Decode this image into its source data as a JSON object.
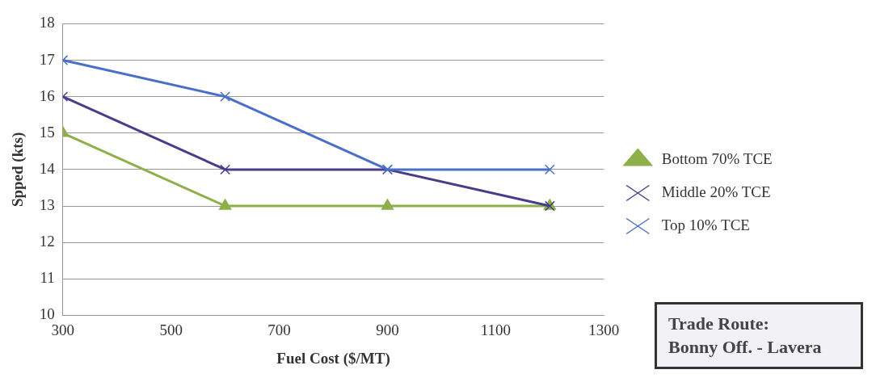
{
  "chart_data": {
    "type": "line",
    "xlabel": "Fuel Cost ($/MT)",
    "ylabel": "Spped (kts)",
    "x": [
      300,
      600,
      900,
      1200
    ],
    "series": [
      {
        "name": "Bottom 70% TCE",
        "color": "#8db04a",
        "marker": "triangle",
        "values": [
          15,
          13,
          13,
          13
        ]
      },
      {
        "name": "Middle 20% TCE",
        "color": "#4a3c8c",
        "marker": "cross",
        "values": [
          16,
          14,
          14,
          13
        ]
      },
      {
        "name": "Top 10% TCE",
        "color": "#4a6fc8",
        "marker": "cross",
        "values": [
          17,
          16,
          14,
          14
        ]
      }
    ],
    "xlim": [
      300,
      1300
    ],
    "xticks": [
      300,
      500,
      700,
      900,
      1100,
      1300
    ],
    "ylim": [
      10,
      18
    ],
    "yticks": [
      10,
      11,
      12,
      13,
      14,
      15,
      16,
      17,
      18
    ],
    "grid": "y",
    "legend": "right",
    "annotations": [
      "Trade Route:\nBonny Off. - Lavera"
    ]
  }
}
